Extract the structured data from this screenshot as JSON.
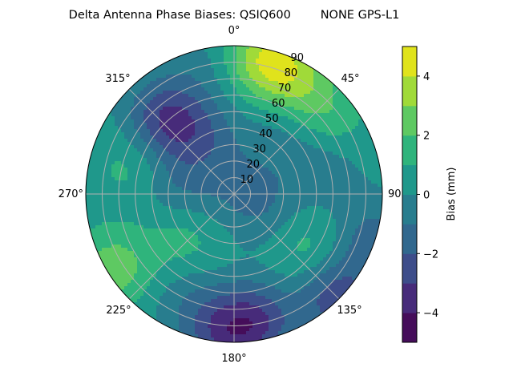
{
  "chart_data": {
    "type": "heatmap",
    "subtype": "polar filled contour",
    "title": "Delta Antenna Phase Biases: QSIQ600        NONE GPS-L1",
    "angular_axis": {
      "zero_location": "top",
      "direction": "clockwise",
      "tick_labels": [
        "0°",
        "45°",
        "90°",
        "135°",
        "180°",
        "225°",
        "270°",
        "315°"
      ]
    },
    "radial_axis": {
      "range": [
        0,
        90
      ],
      "tick_labels": [
        "10",
        "20",
        "30",
        "40",
        "50",
        "60",
        "70",
        "80",
        "90"
      ]
    },
    "grid": true,
    "colorbar": {
      "label": "Bias (mm)",
      "colormap": "viridis",
      "range": [
        -5,
        5
      ],
      "levels": [
        -5,
        -4,
        -3,
        -2,
        -1,
        0,
        1,
        2,
        3,
        4,
        5
      ],
      "tick_labels": [
        "4",
        "2",
        "0",
        "−2",
        "−4"
      ],
      "tick_values": [
        4,
        2,
        0,
        -2,
        -4
      ],
      "level_colors": [
        "#450d5a",
        "#472b7a",
        "#3d4d8a",
        "#31688e",
        "#287d8e",
        "#1f988b",
        "#2fb47c",
        "#5ec962",
        "#a0da39",
        "#e0e31c"
      ]
    },
    "background_bias": 0.4,
    "features": [
      {
        "azimuth": 13,
        "zenith": 84,
        "bias": 3.6
      },
      {
        "azimuth": 28,
        "zenith": 80,
        "bias": 2.4
      },
      {
        "azimuth": 50,
        "zenith": 72,
        "bias": 1.8
      },
      {
        "azimuth": 40,
        "zenith": 45,
        "bias": -0.6
      },
      {
        "azimuth": 75,
        "zenith": 55,
        "bias": -0.7
      },
      {
        "azimuth": 317,
        "zenith": 62,
        "bias": -2.8
      },
      {
        "azimuth": 330,
        "zenith": 40,
        "bias": -1.3
      },
      {
        "azimuth": 275,
        "zenith": 35,
        "bias": -1.0
      },
      {
        "azimuth": 0,
        "zenith": 5,
        "bias": -0.5
      },
      {
        "azimuth": 120,
        "zenith": 20,
        "bias": -0.8
      },
      {
        "azimuth": 287,
        "zenith": 62,
        "bias": 1.6
      },
      {
        "azimuth": 230,
        "zenith": 40,
        "bias": 1.6
      },
      {
        "azimuth": 238,
        "zenith": 86,
        "bias": 2.6
      },
      {
        "azimuth": 126,
        "zenith": 56,
        "bias": 1.7
      },
      {
        "azimuth": 170,
        "zenith": 78,
        "bias": -2.6
      },
      {
        "azimuth": 185,
        "zenith": 85,
        "bias": -2.2
      },
      {
        "azimuth": 135,
        "zenith": 88,
        "bias": -2.6
      },
      {
        "azimuth": 108,
        "zenith": 88,
        "bias": -1.4
      },
      {
        "azimuth": 205,
        "zenith": 70,
        "bias": -0.6
      },
      {
        "azimuth": 345,
        "zenith": 80,
        "bias": -0.4
      }
    ]
  }
}
